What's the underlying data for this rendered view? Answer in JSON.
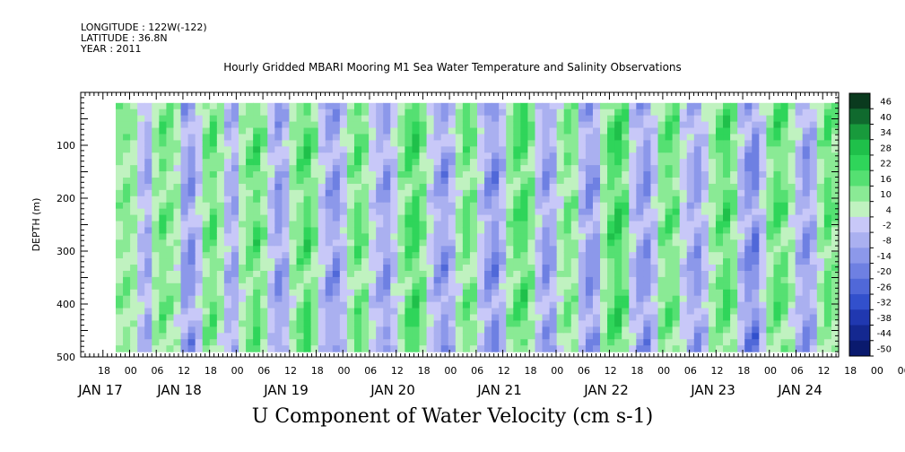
{
  "header": {
    "longitude": "LONGITUDE : 122W(-122)",
    "latitude": "LATITUDE : 36.8N",
    "year": "YEAR : 2011"
  },
  "chart_data": {
    "type": "heatmap",
    "title": "Hourly Gridded MBARI Mooring M1 Sea Water Temperature and Salinity Observations",
    "xlabel": "U Component of Water Velocity (cm s-1)",
    "ylabel": "DEPTH (m)",
    "y_axis": {
      "range": [
        500,
        0
      ],
      "ticks": [
        100,
        200,
        300,
        400,
        500
      ],
      "data_extent": [
        20,
        490
      ]
    },
    "x_axis": {
      "hour_ticks": [
        "18",
        "00",
        "06",
        "12",
        "18",
        "00",
        "06",
        "12",
        "18",
        "00",
        "06",
        "12",
        "18",
        "00",
        "06",
        "12",
        "18",
        "00",
        "06",
        "12",
        "18",
        "00",
        "06",
        "12",
        "18",
        "00",
        "06",
        "12",
        "18",
        "00",
        "06",
        "12"
      ],
      "day_labels": [
        "JAN 17",
        "JAN 18",
        "JAN 19",
        "JAN 20",
        "JAN 21",
        "JAN 22",
        "JAN 23",
        "JAN 24"
      ]
    },
    "colorbar": {
      "levels": [
        "46",
        "40",
        "34",
        "28",
        "22",
        "16",
        "10",
        "4",
        "-2",
        "-8",
        "-14",
        "-20",
        "-26",
        "-32",
        "-38",
        "-44",
        "-50"
      ],
      "colors": [
        "#0a3a1e",
        "#106a2e",
        "#189a3c",
        "#1fc04a",
        "#2fd55a",
        "#55e072",
        "#8aea95",
        "#c0f2c0",
        "#c8c8f8",
        "#aab0f0",
        "#8c98ea",
        "#6e80e2",
        "#5068d8",
        "#3250cc",
        "#2038b0",
        "#142890",
        "#0a1a6e"
      ]
    },
    "velocity_columns": [
      8,
      10,
      6,
      -8,
      -14,
      6,
      14,
      10,
      4,
      -16,
      -20,
      -6,
      10,
      16,
      6,
      -10,
      -14,
      4,
      12,
      18,
      8,
      -8,
      -18,
      -12,
      6,
      14,
      20,
      10,
      -6,
      -16,
      -20,
      -8,
      8,
      16,
      10,
      -4,
      -12,
      -18,
      -6,
      8,
      18,
      22,
      12,
      -4,
      -14,
      -20,
      -10,
      6,
      14,
      10,
      -6,
      -18,
      -22,
      -10,
      8,
      16,
      20,
      10,
      -8,
      -18,
      -14,
      4,
      12,
      8,
      -10,
      -20,
      -16,
      6,
      18,
      22,
      14,
      -6,
      -16,
      -20,
      -8,
      10,
      16,
      12,
      -4,
      -12,
      -18,
      -8,
      6,
      14,
      20,
      10,
      -10,
      -20,
      -24,
      -6,
      10,
      18,
      14,
      4,
      -10,
      -18,
      -12,
      6,
      16,
      10
    ]
  }
}
